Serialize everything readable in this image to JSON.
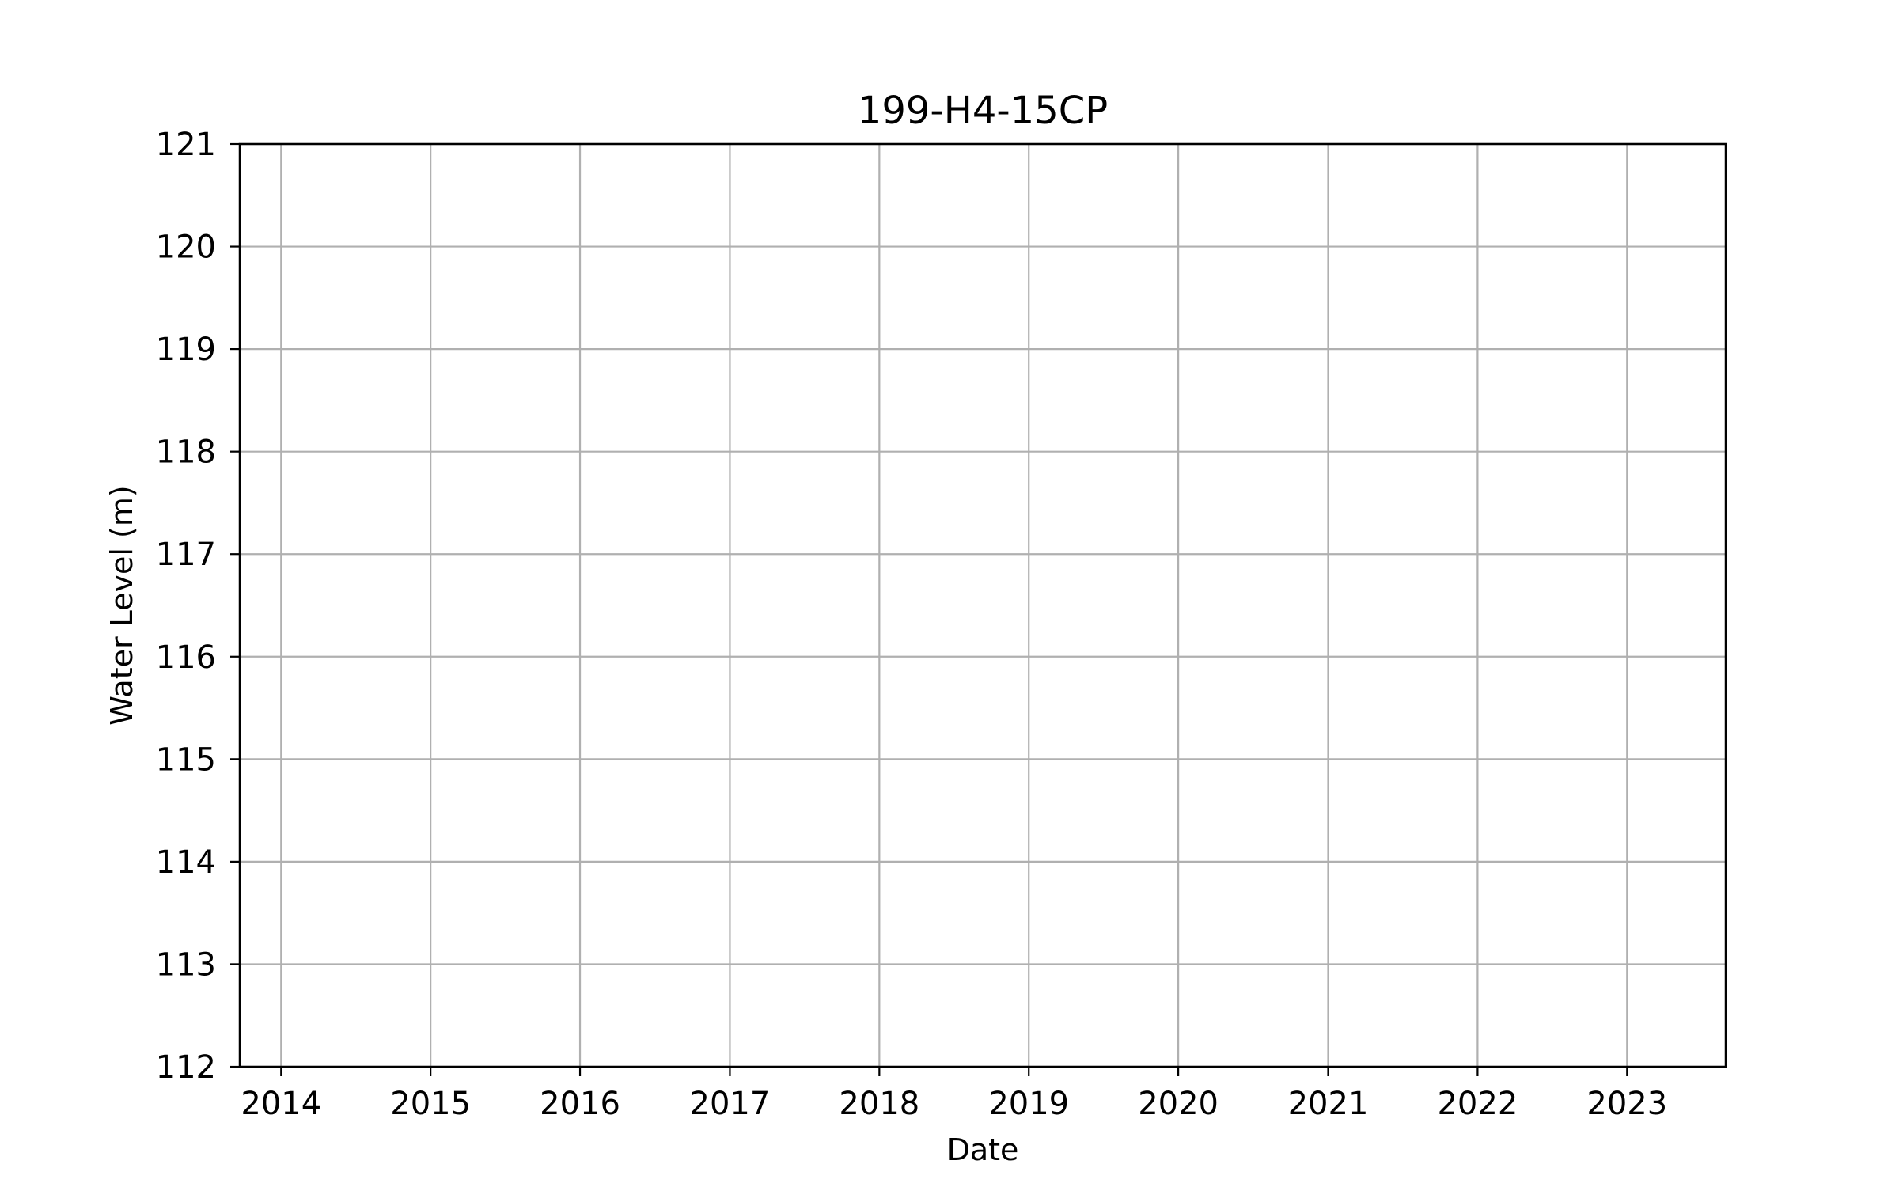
{
  "chart_data": {
    "type": "line",
    "title": "199-H4-15CP",
    "xlabel": "Date",
    "ylabel": "Water Level (m)",
    "x_ticks": [
      "2014",
      "2015",
      "2016",
      "2017",
      "2018",
      "2019",
      "2020",
      "2021",
      "2022",
      "2023"
    ],
    "xlim": [
      "2013-09-22",
      "2023-08-30"
    ],
    "y_ticks": [
      112,
      113,
      114,
      115,
      116,
      117,
      118,
      119,
      120,
      121
    ],
    "ylim": [
      112,
      121
    ],
    "series": [],
    "grid": true,
    "colors": {
      "grid": "#b0b0b0",
      "axes": "#000000",
      "background": "#ffffff"
    }
  }
}
